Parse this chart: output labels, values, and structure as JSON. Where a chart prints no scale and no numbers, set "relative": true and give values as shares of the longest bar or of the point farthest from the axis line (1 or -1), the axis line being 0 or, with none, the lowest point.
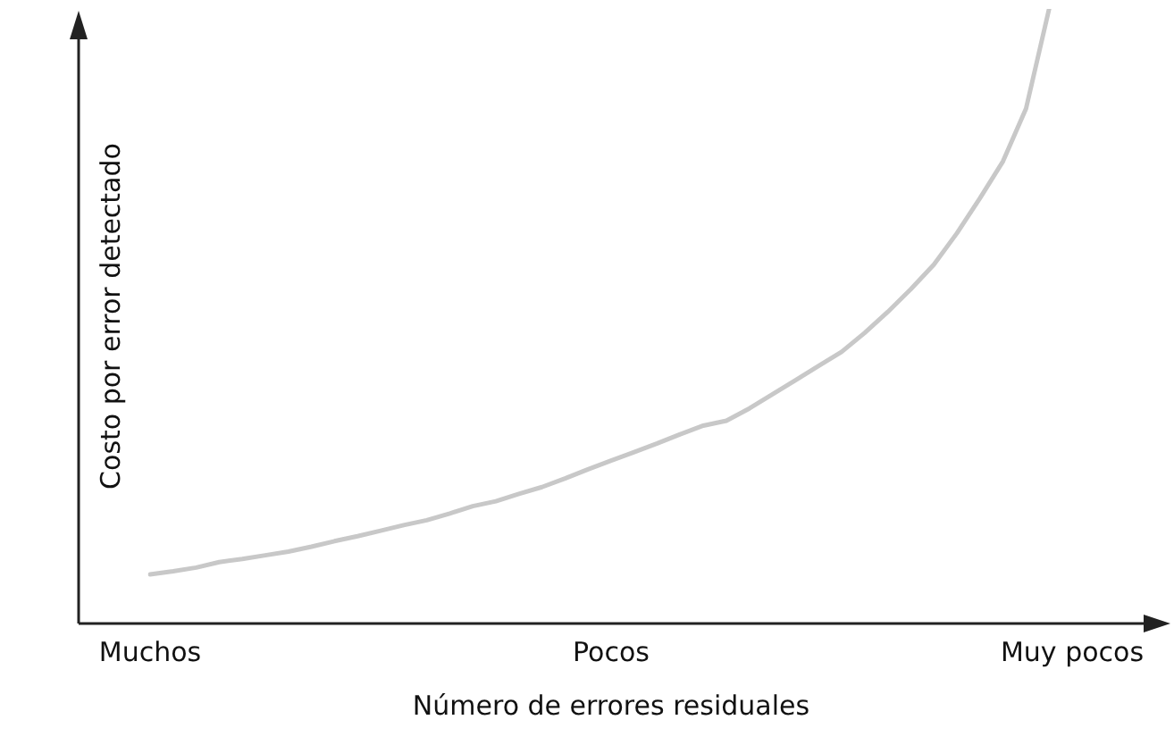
{
  "chart_data": {
    "type": "line",
    "xlabel": "Número de errores residuales",
    "ylabel": "Costo por error detectado",
    "relative": true,
    "grid": false,
    "legend": false,
    "marker": "none",
    "line_style": "solid",
    "categories": [
      "Muchos",
      null,
      null,
      null,
      null,
      null,
      null,
      null,
      null,
      null,
      null,
      null,
      null,
      null,
      null,
      null,
      null,
      null,
      null,
      null,
      "Pocos",
      null,
      null,
      null,
      null,
      null,
      null,
      null,
      null,
      null,
      null,
      null,
      null,
      null,
      null,
      null,
      null,
      null,
      null,
      null,
      "Muy pocos"
    ],
    "series": [
      {
        "color": "#c8c8c8",
        "values": [
          0.08,
          0.085,
          0.091,
          0.1,
          0.105,
          0.111,
          0.117,
          0.125,
          0.134,
          0.142,
          0.151,
          0.16,
          0.168,
          0.179,
          0.191,
          0.199,
          0.211,
          0.222,
          0.236,
          0.251,
          0.265,
          0.279,
          0.293,
          0.308,
          0.322,
          0.33,
          0.35,
          0.373,
          0.396,
          0.419,
          0.442,
          0.473,
          0.507,
          0.544,
          0.584,
          0.635,
          0.692,
          0.752,
          0.838,
          1,
          null
        ]
      }
    ]
  }
}
